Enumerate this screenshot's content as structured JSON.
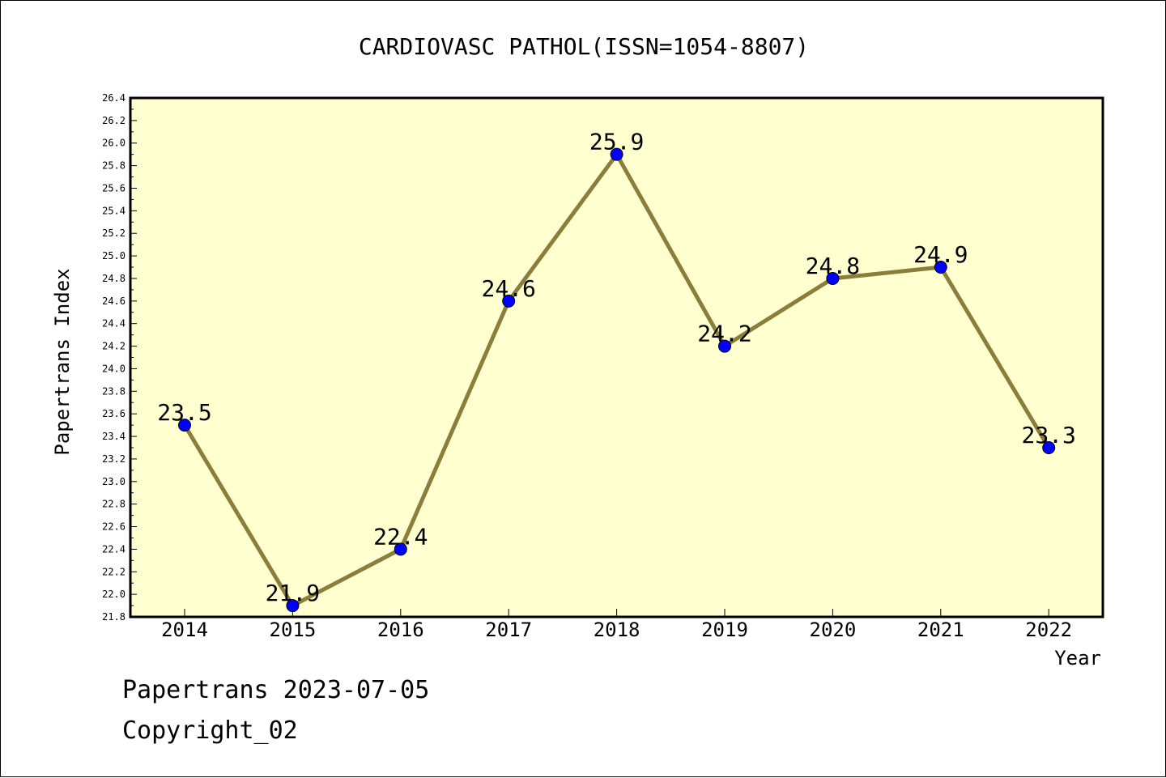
{
  "chart_data": {
    "type": "line",
    "title": "CARDIOVASC PATHOL(ISSN=1054-8807)",
    "xlabel": "Year",
    "ylabel": "Papertrans Index",
    "categories": [
      "2014",
      "2015",
      "2016",
      "2017",
      "2018",
      "2019",
      "2020",
      "2021",
      "2022"
    ],
    "values": [
      23.5,
      21.9,
      22.4,
      24.6,
      25.9,
      24.2,
      24.8,
      24.9,
      23.3
    ],
    "value_labels": [
      "23.5",
      "21.9",
      "22.4",
      "24.6",
      "25.9",
      "24.2",
      "24.8",
      "24.9",
      "23.3"
    ],
    "ylim": [
      21.8,
      26.4
    ],
    "y_ticks": [
      "21.8",
      "22.0",
      "22.2",
      "22.4",
      "22.6",
      "22.8",
      "23.0",
      "23.2",
      "23.4",
      "23.6",
      "23.8",
      "24.0",
      "24.2",
      "24.4",
      "24.6",
      "24.8",
      "25.0",
      "25.2",
      "25.4",
      "25.6",
      "25.8",
      "26.0",
      "26.2",
      "26.4"
    ],
    "grid": false,
    "colors": {
      "line": "#8b7d3a",
      "marker": "#0000ff",
      "plot_background": "#ffffd0"
    }
  },
  "footer": {
    "line1": "Papertrans 2023-07-05",
    "line2": "Copyright_02"
  }
}
